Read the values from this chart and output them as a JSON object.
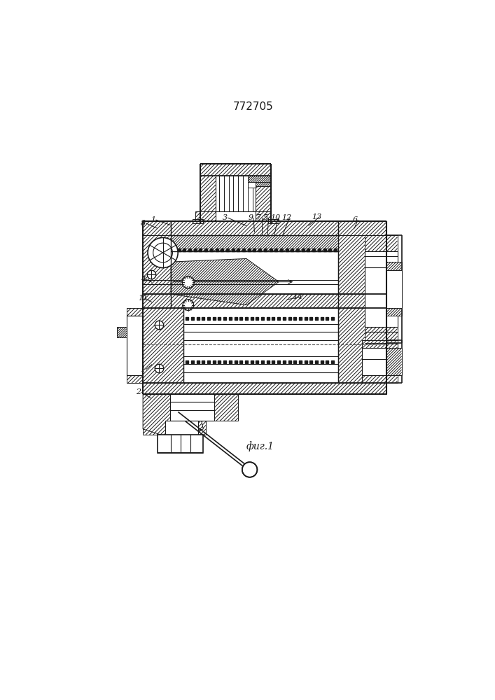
{
  "title": "772705",
  "fig_caption": "фиг.1",
  "bg_color": "#ffffff",
  "line_color": "#1a1a1a"
}
